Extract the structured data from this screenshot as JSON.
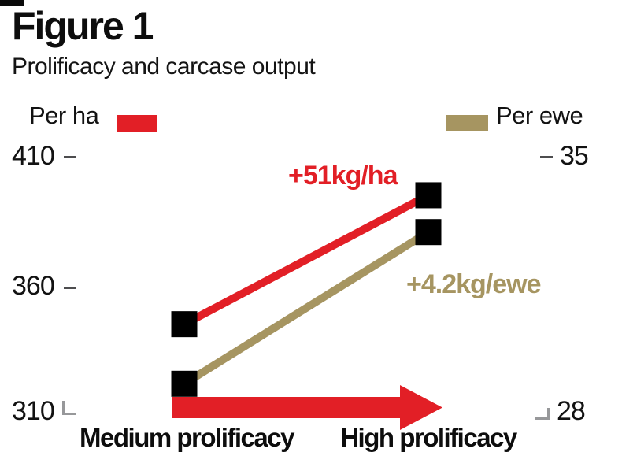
{
  "figure": {
    "title": "Figure 1",
    "subtitle": "Prolificacy and carcase output"
  },
  "colors": {
    "per_ha": "#e21f26",
    "per_ewe": "#a69561",
    "marker": "#000000"
  },
  "chart_data": {
    "type": "line",
    "title": "Prolificacy and carcase output",
    "categories": [
      "Medium prolificacy",
      "High prolificacy"
    ],
    "series": [
      {
        "name": "Per ha",
        "axis": "left",
        "unit": "kg/ha",
        "values": [
          345,
          396
        ],
        "gain_label": "+51kg/ha",
        "color": "#e21f26"
      },
      {
        "name": "Per ewe",
        "axis": "right",
        "unit": "kg/ewe",
        "values": [
          28.8,
          33
        ],
        "gain_label": "+4.2kg/ewe",
        "color": "#a69561"
      }
    ],
    "left_axis": {
      "ticks": [
        410,
        360,
        310
      ],
      "range": [
        310,
        410
      ],
      "label_style": "dash"
    },
    "right_axis": {
      "ticks": [
        35,
        28
      ],
      "range": [
        28,
        35
      ],
      "label_style": "dash"
    },
    "marker": "black-square",
    "legend_position": "top",
    "grid": false,
    "arrow": {
      "direction": "right",
      "color": "#e21f26"
    }
  }
}
